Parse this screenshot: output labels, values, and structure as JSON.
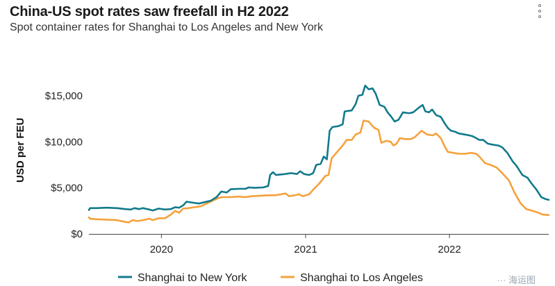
{
  "header": {
    "title": "China-US spot rates saw freefall in H2 2022",
    "subtitle": "Spot container rates for Shanghai to Los Angeles and New York"
  },
  "menu_icon": "kebab-menu-icon",
  "watermark": "··· 海运图",
  "colors": {
    "shanghai_new_york": "#117a8b",
    "shanghai_los_angeles": "#f5a13c",
    "axis": "#444444"
  },
  "chart_data": {
    "type": "line",
    "ylabel": "USD per FEU",
    "xlabel": "",
    "ylim": [
      0,
      16500
    ],
    "yticks": [
      0,
      5000,
      10000,
      15000
    ],
    "ytick_labels": [
      "$0",
      "$5,000",
      "$10,000",
      "$15,000"
    ],
    "xticks": [
      "2020-01-01",
      "2021-01-01",
      "2022-01-01"
    ],
    "xtick_labels": [
      "2020",
      "2021",
      "2022"
    ],
    "xlim": [
      "2019-07-01",
      "2022-09-10"
    ],
    "grid": false,
    "legend_position": "bottom",
    "series": [
      {
        "name": "Shanghai to New York",
        "color_key": "shanghai_new_york",
        "points": [
          [
            "2019-07-01",
            2600
          ],
          [
            "2019-07-04",
            2800
          ],
          [
            "2019-07-20",
            2800
          ],
          [
            "2019-08-15",
            2850
          ],
          [
            "2019-09-10",
            2800
          ],
          [
            "2019-10-01",
            2700
          ],
          [
            "2019-10-15",
            2650
          ],
          [
            "2019-10-25",
            2800
          ],
          [
            "2019-11-05",
            2700
          ],
          [
            "2019-11-15",
            2800
          ],
          [
            "2019-12-01",
            2650
          ],
          [
            "2019-12-10",
            2550
          ],
          [
            "2019-12-25",
            2750
          ],
          [
            "2020-01-10",
            2650
          ],
          [
            "2020-01-25",
            2700
          ],
          [
            "2020-02-05",
            2900
          ],
          [
            "2020-02-15",
            2850
          ],
          [
            "2020-02-25",
            3100
          ],
          [
            "2020-03-05",
            3500
          ],
          [
            "2020-03-20",
            3400
          ],
          [
            "2020-04-05",
            3300
          ],
          [
            "2020-04-20",
            3450
          ],
          [
            "2020-05-05",
            3600
          ],
          [
            "2020-05-20",
            4000
          ],
          [
            "2020-06-01",
            4600
          ],
          [
            "2020-06-15",
            4500
          ],
          [
            "2020-06-25",
            4850
          ],
          [
            "2020-07-15",
            4900
          ],
          [
            "2020-08-01",
            4900
          ],
          [
            "2020-08-10",
            5050
          ],
          [
            "2020-08-25",
            5000
          ],
          [
            "2020-09-15",
            5050
          ],
          [
            "2020-09-28",
            5200
          ],
          [
            "2020-10-03",
            6400
          ],
          [
            "2020-10-10",
            6700
          ],
          [
            "2020-10-18",
            6400
          ],
          [
            "2020-11-10",
            6500
          ],
          [
            "2020-11-25",
            6600
          ],
          [
            "2020-12-10",
            6500
          ],
          [
            "2020-12-18",
            6800
          ],
          [
            "2020-12-28",
            6500
          ],
          [
            "2021-01-10",
            6400
          ],
          [
            "2021-01-20",
            6600
          ],
          [
            "2021-01-28",
            7500
          ],
          [
            "2021-02-08",
            7600
          ],
          [
            "2021-02-16",
            8400
          ],
          [
            "2021-02-24",
            8100
          ],
          [
            "2021-03-03",
            11200
          ],
          [
            "2021-03-10",
            11600
          ],
          [
            "2021-03-25",
            11700
          ],
          [
            "2021-04-05",
            11900
          ],
          [
            "2021-04-10",
            13300
          ],
          [
            "2021-04-28",
            13400
          ],
          [
            "2021-05-08",
            14100
          ],
          [
            "2021-05-15",
            15000
          ],
          [
            "2021-05-25",
            15100
          ],
          [
            "2021-06-01",
            16100
          ],
          [
            "2021-06-10",
            15700
          ],
          [
            "2021-06-20",
            15800
          ],
          [
            "2021-06-28",
            15200
          ],
          [
            "2021-07-08",
            14000
          ],
          [
            "2021-07-20",
            13800
          ],
          [
            "2021-07-28",
            13200
          ],
          [
            "2021-08-05",
            12800
          ],
          [
            "2021-08-15",
            12200
          ],
          [
            "2021-08-25",
            12400
          ],
          [
            "2021-09-05",
            13200
          ],
          [
            "2021-09-20",
            13100
          ],
          [
            "2021-10-01",
            13200
          ],
          [
            "2021-10-15",
            13700
          ],
          [
            "2021-10-25",
            14000
          ],
          [
            "2021-11-01",
            13300
          ],
          [
            "2021-11-10",
            13200
          ],
          [
            "2021-11-18",
            13500
          ],
          [
            "2021-11-28",
            12900
          ],
          [
            "2021-12-10",
            12700
          ],
          [
            "2021-12-20",
            12000
          ],
          [
            "2021-12-28",
            11500
          ],
          [
            "2022-01-05",
            11200
          ],
          [
            "2022-01-15",
            11100
          ],
          [
            "2022-01-25",
            10900
          ],
          [
            "2022-02-08",
            10800
          ],
          [
            "2022-02-20",
            10700
          ],
          [
            "2022-03-01",
            10600
          ],
          [
            "2022-03-10",
            10400
          ],
          [
            "2022-03-18",
            10200
          ],
          [
            "2022-03-28",
            10200
          ],
          [
            "2022-04-08",
            9800
          ],
          [
            "2022-04-20",
            9700
          ],
          [
            "2022-05-05",
            9600
          ],
          [
            "2022-05-15",
            9400
          ],
          [
            "2022-05-28",
            8800
          ],
          [
            "2022-06-10",
            7900
          ],
          [
            "2022-06-20",
            7400
          ],
          [
            "2022-07-05",
            6400
          ],
          [
            "2022-07-18",
            6100
          ],
          [
            "2022-07-28",
            5500
          ],
          [
            "2022-08-10",
            4800
          ],
          [
            "2022-08-22",
            4000
          ],
          [
            "2022-09-01",
            3800
          ],
          [
            "2022-09-10",
            3700
          ]
        ]
      },
      {
        "name": "Shanghai to Los Angeles",
        "color_key": "shanghai_los_angeles",
        "points": [
          [
            "2019-07-01",
            1800
          ],
          [
            "2019-07-04",
            1650
          ],
          [
            "2019-07-20",
            1600
          ],
          [
            "2019-08-15",
            1550
          ],
          [
            "2019-09-10",
            1500
          ],
          [
            "2019-10-01",
            1300
          ],
          [
            "2019-10-10",
            1250
          ],
          [
            "2019-10-20",
            1500
          ],
          [
            "2019-11-01",
            1400
          ],
          [
            "2019-11-15",
            1500
          ],
          [
            "2019-12-01",
            1650
          ],
          [
            "2019-12-10",
            1500
          ],
          [
            "2019-12-25",
            1700
          ],
          [
            "2020-01-10",
            1700
          ],
          [
            "2020-01-25",
            2100
          ],
          [
            "2020-02-05",
            2500
          ],
          [
            "2020-02-15",
            2300
          ],
          [
            "2020-02-25",
            2750
          ],
          [
            "2020-03-10",
            2800
          ],
          [
            "2020-03-25",
            2900
          ],
          [
            "2020-04-10",
            3000
          ],
          [
            "2020-04-25",
            3300
          ],
          [
            "2020-05-10",
            3600
          ],
          [
            "2020-05-25",
            3900
          ],
          [
            "2020-06-05",
            4000
          ],
          [
            "2020-06-25",
            4000
          ],
          [
            "2020-07-15",
            4050
          ],
          [
            "2020-08-01",
            4000
          ],
          [
            "2020-08-20",
            4100
          ],
          [
            "2020-09-10",
            4150
          ],
          [
            "2020-09-28",
            4200
          ],
          [
            "2020-10-15",
            4200
          ],
          [
            "2020-11-01",
            4300
          ],
          [
            "2020-11-10",
            4400
          ],
          [
            "2020-11-20",
            4100
          ],
          [
            "2020-12-05",
            4200
          ],
          [
            "2020-12-15",
            4300
          ],
          [
            "2020-12-25",
            4100
          ],
          [
            "2021-01-10",
            4300
          ],
          [
            "2021-01-20",
            4800
          ],
          [
            "2021-02-05",
            5500
          ],
          [
            "2021-02-20",
            6300
          ],
          [
            "2021-02-28",
            6400
          ],
          [
            "2021-03-08",
            8200
          ],
          [
            "2021-03-20",
            8800
          ],
          [
            "2021-04-05",
            9600
          ],
          [
            "2021-04-15",
            10200
          ],
          [
            "2021-04-28",
            10200
          ],
          [
            "2021-05-08",
            10800
          ],
          [
            "2021-05-20",
            11000
          ],
          [
            "2021-05-28",
            12300
          ],
          [
            "2021-06-10",
            12200
          ],
          [
            "2021-06-18",
            11800
          ],
          [
            "2021-06-25",
            11500
          ],
          [
            "2021-07-05",
            11300
          ],
          [
            "2021-07-12",
            9900
          ],
          [
            "2021-07-25",
            10100
          ],
          [
            "2021-08-05",
            10000
          ],
          [
            "2021-08-12",
            9600
          ],
          [
            "2021-08-20",
            9800
          ],
          [
            "2021-08-28",
            10400
          ],
          [
            "2021-09-10",
            10300
          ],
          [
            "2021-09-25",
            10300
          ],
          [
            "2021-10-05",
            10500
          ],
          [
            "2021-10-15",
            10900
          ],
          [
            "2021-10-22",
            11200
          ],
          [
            "2021-11-05",
            10800
          ],
          [
            "2021-11-20",
            10700
          ],
          [
            "2021-11-28",
            10900
          ],
          [
            "2021-12-10",
            10400
          ],
          [
            "2021-12-20",
            9500
          ],
          [
            "2021-12-28",
            8900
          ],
          [
            "2022-01-10",
            8800
          ],
          [
            "2022-01-25",
            8700
          ],
          [
            "2022-02-10",
            8700
          ],
          [
            "2022-02-25",
            8800
          ],
          [
            "2022-03-10",
            8700
          ],
          [
            "2022-03-20",
            8300
          ],
          [
            "2022-04-01",
            7700
          ],
          [
            "2022-04-15",
            7500
          ],
          [
            "2022-05-01",
            7200
          ],
          [
            "2022-05-15",
            6600
          ],
          [
            "2022-06-01",
            5800
          ],
          [
            "2022-06-15",
            4500
          ],
          [
            "2022-07-01",
            3300
          ],
          [
            "2022-07-15",
            2700
          ],
          [
            "2022-08-01",
            2500
          ],
          [
            "2022-08-15",
            2300
          ],
          [
            "2022-08-25",
            2100
          ],
          [
            "2022-09-10",
            2050
          ]
        ]
      }
    ]
  }
}
